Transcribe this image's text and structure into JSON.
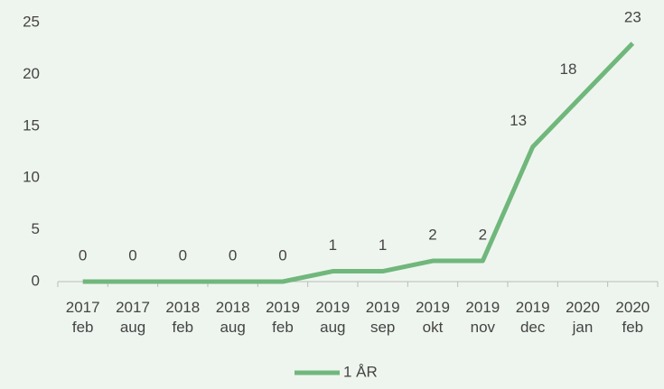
{
  "chart_data": {
    "type": "line",
    "categories": [
      "2017 feb",
      "2017 aug",
      "2018 feb",
      "2018 aug",
      "2019 feb",
      "2019 aug",
      "2019 sep",
      "2019 okt",
      "2019 nov",
      "2019 dec",
      "2020 jan",
      "2020 feb"
    ],
    "series": [
      {
        "name": "1 ÅR",
        "color": "#70b77c",
        "values": [
          0,
          0,
          0,
          0,
          0,
          1,
          1,
          2,
          2,
          13,
          18,
          23
        ]
      }
    ],
    "ylim": [
      0,
      25
    ],
    "yticks": [
      0,
      5,
      10,
      15,
      20,
      25
    ],
    "grid": false,
    "legend": "bottom",
    "data_labels": true
  }
}
